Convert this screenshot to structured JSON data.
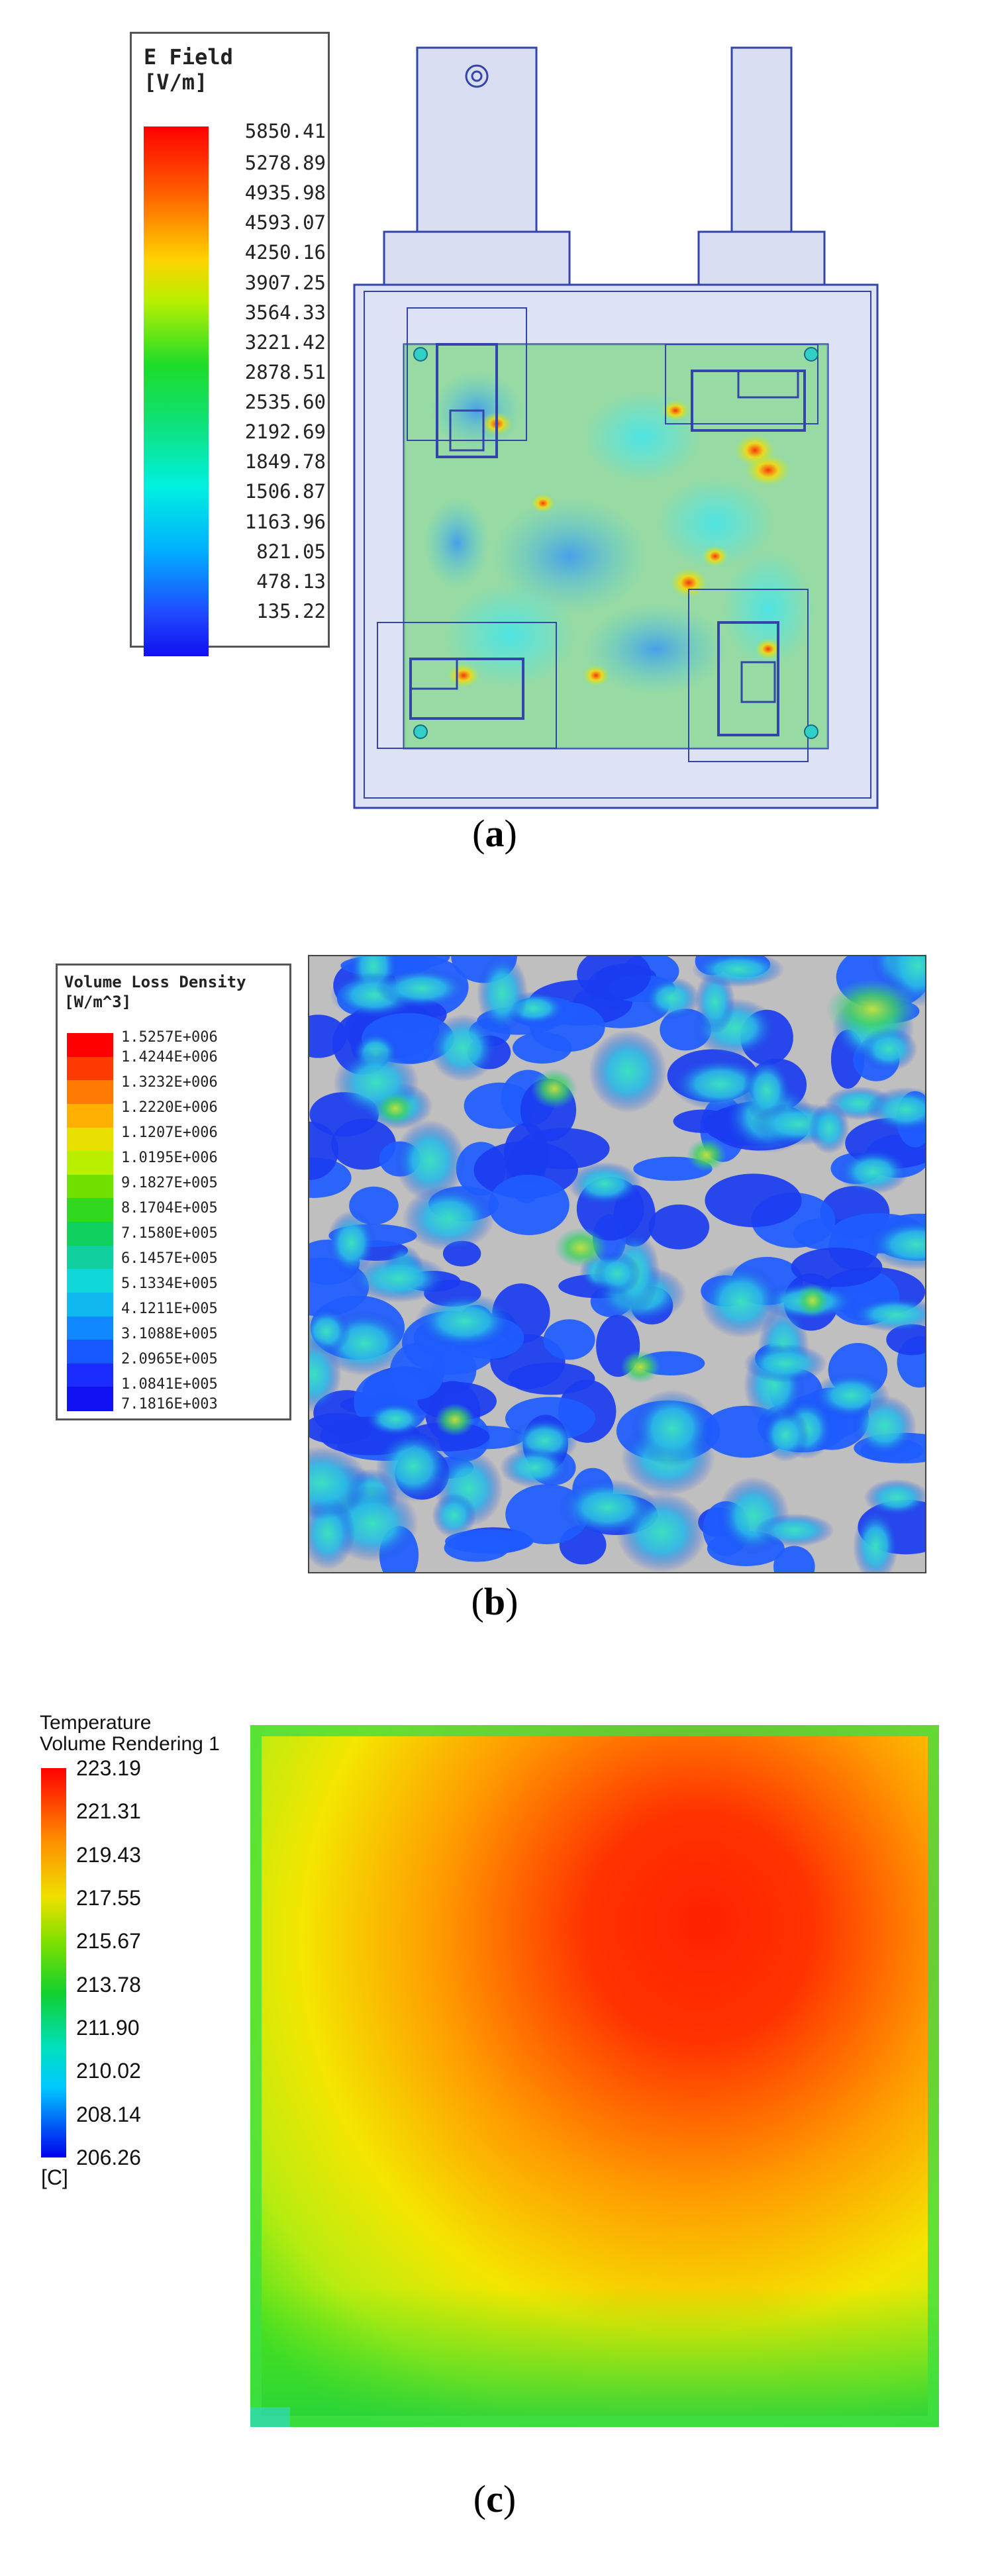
{
  "panel_a": {
    "legend_title_line1": "E Field",
    "legend_title_line2": "[V/m]",
    "legend_values": [
      "5850.41",
      "5278.89",
      "4935.98",
      "4593.07",
      "4250.16",
      "3907.25",
      "3564.33",
      "3221.42",
      "2878.51",
      "2535.60",
      "2192.69",
      "1849.78",
      "1506.87",
      "1163.96",
      "821.05",
      "478.13",
      "135.22"
    ],
    "caption_letter": "a"
  },
  "panel_b": {
    "legend_title_line1": "Volume Loss Density",
    "legend_title_line2": "[W/m^3]",
    "legend_values": [
      "1.5257E+006",
      "1.4244E+006",
      "1.3232E+006",
      "1.2220E+006",
      "1.1207E+006",
      "1.0195E+006",
      "9.1827E+005",
      "8.1704E+005",
      "7.1580E+005",
      "6.1457E+005",
      "5.1334E+005",
      "4.1211E+005",
      "3.1088E+005",
      "2.0965E+005",
      "1.0841E+005",
      "7.1816E+003"
    ],
    "caption_letter": "b"
  },
  "panel_c": {
    "legend_title_line1": "Temperature",
    "legend_title_line2": "Volume Rendering 1",
    "legend_values": [
      "223.19",
      "221.31",
      "219.43",
      "217.55",
      "215.67",
      "213.78",
      "211.90",
      "210.02",
      "208.14",
      "206.26"
    ],
    "legend_unit": "[C]",
    "caption_letter": "c"
  },
  "colors": {
    "jet_red": "#ff1a00",
    "jet_yellow": "#f5e000",
    "jet_green": "#1ed21e",
    "jet_cyan": "#00e5ff",
    "jet_blue": "#0000ff",
    "cavity_fill": "#9fd3a4",
    "structure_outline": "#3344aa",
    "structure_fill": "#c5cce8"
  }
}
